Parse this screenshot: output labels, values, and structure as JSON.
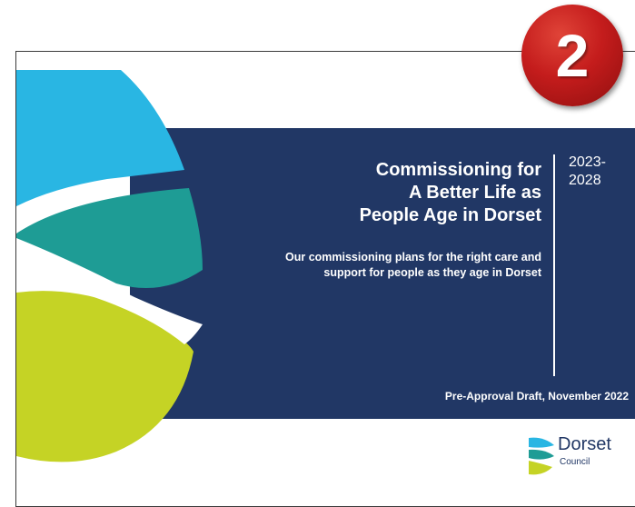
{
  "slide": {
    "title": "Commissioning for\nA Better Life as\nPeople Age in Dorset",
    "subtitle": "Our commissioning plans for the right care and\nsupport for people as they age in Dorset",
    "years": "2023-\n2028",
    "draft_note": "Pre-Approval Draft, November 2022"
  },
  "logo": {
    "name": "Dorset",
    "subtitle": "Council"
  },
  "badge": {
    "number": "2"
  },
  "colors": {
    "navy": "#213765",
    "cyan": "#29b6e3",
    "teal": "#1e9c95",
    "lime": "#c5d325",
    "badge_red": "#c41c1c"
  }
}
